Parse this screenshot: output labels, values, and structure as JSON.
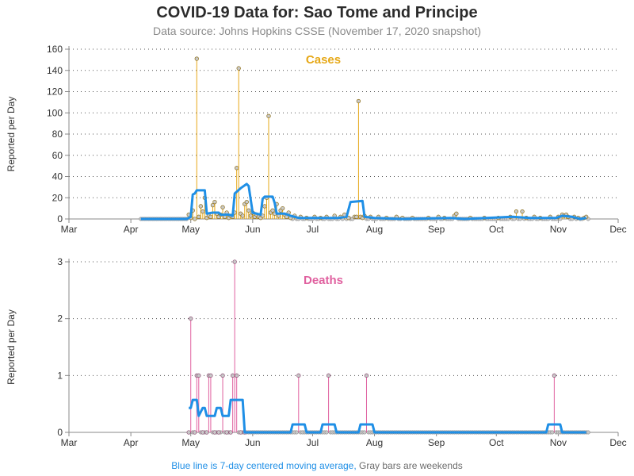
{
  "header": {
    "title": "COVID-19 Data for: Sao Tome and Principe",
    "subtitle": "Data source: Johns Hopkins CSSE (November 17, 2020 snapshot)"
  },
  "footer": {
    "moving_avg_note": "Blue line is 7-day centered moving average,",
    "weekend_note": "Gray bars are weekends"
  },
  "colors": {
    "cases": "#e6a817",
    "deaths": "#e0609f",
    "moving_average": "#1f8fe6",
    "marker_fill": "#c9c9c9",
    "axis": "#888888"
  },
  "chart_data": [
    {
      "type": "line",
      "title": "Cases",
      "ylabel": "Reported per Day",
      "ylim": [
        0,
        160
      ],
      "yticks": [
        0,
        20,
        40,
        60,
        80,
        100,
        120,
        140,
        160
      ],
      "xticks": [
        "Mar",
        "Apr",
        "May",
        "Jun",
        "Jul",
        "Aug",
        "Sep",
        "Oct",
        "Nov",
        "Dec"
      ],
      "grid": "horizontal dotted",
      "series": [
        {
          "style": "needle",
          "points": [
            [
              "2020-04-30",
              4
            ],
            [
              "2020-05-01",
              1
            ],
            [
              "2020-05-02",
              8
            ],
            [
              "2020-05-03",
              0
            ],
            [
              "2020-05-04",
              151
            ],
            [
              "2020-05-05",
              2
            ],
            [
              "2020-05-06",
              12
            ],
            [
              "2020-05-07",
              7
            ],
            [
              "2020-05-08",
              20
            ],
            [
              "2020-05-09",
              1
            ],
            [
              "2020-05-10",
              3
            ],
            [
              "2020-05-11",
              2
            ],
            [
              "2020-05-12",
              13
            ],
            [
              "2020-05-13",
              16
            ],
            [
              "2020-05-14",
              5
            ],
            [
              "2020-05-15",
              2
            ],
            [
              "2020-05-16",
              4
            ],
            [
              "2020-05-17",
              11
            ],
            [
              "2020-05-18",
              2
            ],
            [
              "2020-05-19",
              6
            ],
            [
              "2020-05-20",
              1
            ],
            [
              "2020-05-21",
              3
            ],
            [
              "2020-05-22",
              2
            ],
            [
              "2020-05-23",
              6
            ],
            [
              "2020-05-24",
              48
            ],
            [
              "2020-05-25",
              142
            ],
            [
              "2020-05-26",
              5
            ],
            [
              "2020-05-27",
              3
            ],
            [
              "2020-05-28",
              14
            ],
            [
              "2020-05-29",
              16
            ],
            [
              "2020-05-30",
              8
            ],
            [
              "2020-05-31",
              3
            ],
            [
              "2020-06-01",
              6
            ],
            [
              "2020-06-02",
              2
            ],
            [
              "2020-06-03",
              4
            ],
            [
              "2020-06-04",
              2
            ],
            [
              "2020-06-05",
              1
            ],
            [
              "2020-06-06",
              3
            ],
            [
              "2020-06-07",
              12
            ],
            [
              "2020-06-08",
              20
            ],
            [
              "2020-06-09",
              97
            ],
            [
              "2020-06-10",
              6
            ],
            [
              "2020-06-11",
              8
            ],
            [
              "2020-06-12",
              5
            ],
            [
              "2020-06-13",
              14
            ],
            [
              "2020-06-14",
              3
            ],
            [
              "2020-06-15",
              8
            ],
            [
              "2020-06-16",
              10
            ],
            [
              "2020-06-17",
              4
            ],
            [
              "2020-06-18",
              2
            ],
            [
              "2020-06-19",
              6
            ],
            [
              "2020-06-20",
              1
            ],
            [
              "2020-06-22",
              3
            ],
            [
              "2020-06-25",
              2
            ],
            [
              "2020-06-28",
              1
            ],
            [
              "2020-07-02",
              2
            ],
            [
              "2020-07-05",
              1
            ],
            [
              "2020-07-08",
              2
            ],
            [
              "2020-07-12",
              3
            ],
            [
              "2020-07-15",
              2
            ],
            [
              "2020-07-17",
              4
            ],
            [
              "2020-07-19",
              1
            ],
            [
              "2020-07-22",
              2
            ],
            [
              "2020-07-23",
              2
            ],
            [
              "2020-07-24",
              111
            ],
            [
              "2020-07-25",
              2
            ],
            [
              "2020-07-26",
              1
            ],
            [
              "2020-07-27",
              3
            ],
            [
              "2020-07-30",
              2
            ],
            [
              "2020-08-03",
              2
            ],
            [
              "2020-08-07",
              1
            ],
            [
              "2020-08-12",
              2
            ],
            [
              "2020-08-15",
              1
            ],
            [
              "2020-08-20",
              1
            ],
            [
              "2020-08-28",
              1
            ],
            [
              "2020-09-02",
              2
            ],
            [
              "2020-09-05",
              1
            ],
            [
              "2020-09-10",
              3
            ],
            [
              "2020-09-11",
              5
            ],
            [
              "2020-09-18",
              1
            ],
            [
              "2020-09-25",
              1
            ],
            [
              "2020-10-02",
              1
            ],
            [
              "2020-10-08",
              2
            ],
            [
              "2020-10-11",
              7
            ],
            [
              "2020-10-14",
              7
            ],
            [
              "2020-10-16",
              1
            ],
            [
              "2020-10-20",
              2
            ],
            [
              "2020-10-23",
              1
            ],
            [
              "2020-10-28",
              2
            ],
            [
              "2020-11-01",
              2
            ],
            [
              "2020-11-03",
              4
            ],
            [
              "2020-11-04",
              3
            ],
            [
              "2020-11-05",
              4
            ],
            [
              "2020-11-06",
              2
            ],
            [
              "2020-11-09",
              2
            ],
            [
              "2020-11-11",
              1
            ],
            [
              "2020-11-14",
              1
            ],
            [
              "2020-11-15",
              2
            ]
          ]
        },
        {
          "name": "7-day centered moving average",
          "style": "line",
          "points": [
            [
              "2020-04-06",
              0
            ],
            [
              "2020-04-29",
              0
            ],
            [
              "2020-05-01",
              2
            ],
            [
              "2020-05-02",
              23
            ],
            [
              "2020-05-03",
              24
            ],
            [
              "2020-05-04",
              27
            ],
            [
              "2020-05-08",
              27
            ],
            [
              "2020-05-09",
              5
            ],
            [
              "2020-05-12",
              6
            ],
            [
              "2020-05-15",
              6
            ],
            [
              "2020-05-16",
              4
            ],
            [
              "2020-05-20",
              4
            ],
            [
              "2020-05-22",
              3
            ],
            [
              "2020-05-23",
              24
            ],
            [
              "2020-05-26",
              29
            ],
            [
              "2020-05-29",
              33
            ],
            [
              "2020-05-30",
              31
            ],
            [
              "2020-06-01",
              6
            ],
            [
              "2020-06-05",
              4
            ],
            [
              "2020-06-06",
              19
            ],
            [
              "2020-06-07",
              21
            ],
            [
              "2020-06-11",
              21
            ],
            [
              "2020-06-12",
              15
            ],
            [
              "2020-06-13",
              5
            ],
            [
              "2020-06-17",
              5
            ],
            [
              "2020-06-20",
              3
            ],
            [
              "2020-06-24",
              1
            ],
            [
              "2020-07-01",
              1
            ],
            [
              "2020-07-14",
              1
            ],
            [
              "2020-07-18",
              2
            ],
            [
              "2020-07-20",
              16
            ],
            [
              "2020-07-26",
              17
            ],
            [
              "2020-07-27",
              2
            ],
            [
              "2020-08-01",
              1
            ],
            [
              "2020-08-15",
              0
            ],
            [
              "2020-09-08",
              1
            ],
            [
              "2020-09-15",
              0
            ],
            [
              "2020-10-09",
              2
            ],
            [
              "2020-10-18",
              1
            ],
            [
              "2020-10-31",
              1
            ],
            [
              "2020-11-03",
              3
            ],
            [
              "2020-11-08",
              2
            ],
            [
              "2020-11-12",
              0
            ],
            [
              "2020-11-15",
              1
            ]
          ]
        }
      ]
    },
    {
      "type": "line",
      "title": "Deaths",
      "ylabel": "Reported per Day",
      "ylim": [
        0,
        3
      ],
      "yticks": [
        0,
        1,
        2,
        3
      ],
      "xticks": [
        "Mar",
        "Apr",
        "May",
        "Jun",
        "Jul",
        "Aug",
        "Sep",
        "Oct",
        "Nov",
        "Dec"
      ],
      "grid": "horizontal dotted",
      "series": [
        {
          "style": "needle",
          "points": [
            [
              "2020-04-30",
              0
            ],
            [
              "2020-05-01",
              2
            ],
            [
              "2020-05-03",
              0
            ],
            [
              "2020-05-04",
              1
            ],
            [
              "2020-05-05",
              1
            ],
            [
              "2020-05-07",
              0
            ],
            [
              "2020-05-09",
              0
            ],
            [
              "2020-05-10",
              1
            ],
            [
              "2020-05-11",
              1
            ],
            [
              "2020-05-13",
              0
            ],
            [
              "2020-05-15",
              0
            ],
            [
              "2020-05-17",
              1
            ],
            [
              "2020-05-19",
              0
            ],
            [
              "2020-05-21",
              0
            ],
            [
              "2020-05-22",
              1
            ],
            [
              "2020-05-23",
              3
            ],
            [
              "2020-05-24",
              1
            ],
            [
              "2020-05-26",
              0
            ],
            [
              "2020-05-28",
              0
            ],
            [
              "2020-06-24",
              1
            ],
            [
              "2020-07-09",
              1
            ],
            [
              "2020-07-28",
              1
            ],
            [
              "2020-10-30",
              1
            ]
          ]
        },
        {
          "name": "7-day centered moving average",
          "style": "line",
          "points": [
            [
              "2020-04-30",
              0.43
            ],
            [
              "2020-05-01",
              0.43
            ],
            [
              "2020-05-02",
              0.57
            ],
            [
              "2020-05-04",
              0.57
            ],
            [
              "2020-05-05",
              0.29
            ],
            [
              "2020-05-07",
              0.43
            ],
            [
              "2020-05-08",
              0.43
            ],
            [
              "2020-05-09",
              0.29
            ],
            [
              "2020-05-13",
              0.29
            ],
            [
              "2020-05-14",
              0.43
            ],
            [
              "2020-05-16",
              0.43
            ],
            [
              "2020-05-17",
              0.29
            ],
            [
              "2020-05-20",
              0.29
            ],
            [
              "2020-05-21",
              0.57
            ],
            [
              "2020-05-27",
              0.57
            ],
            [
              "2020-05-28",
              0
            ],
            [
              "2020-06-20",
              0
            ],
            [
              "2020-06-21",
              0.14
            ],
            [
              "2020-06-27",
              0.14
            ],
            [
              "2020-06-28",
              0
            ],
            [
              "2020-07-05",
              0
            ],
            [
              "2020-07-06",
              0.14
            ],
            [
              "2020-07-12",
              0.14
            ],
            [
              "2020-07-13",
              0
            ],
            [
              "2020-07-24",
              0
            ],
            [
              "2020-07-25",
              0.14
            ],
            [
              "2020-07-31",
              0.14
            ],
            [
              "2020-08-01",
              0
            ],
            [
              "2020-10-26",
              0
            ],
            [
              "2020-10-27",
              0.14
            ],
            [
              "2020-11-02",
              0.14
            ],
            [
              "2020-11-03",
              0
            ],
            [
              "2020-11-15",
              0
            ]
          ]
        }
      ]
    }
  ]
}
